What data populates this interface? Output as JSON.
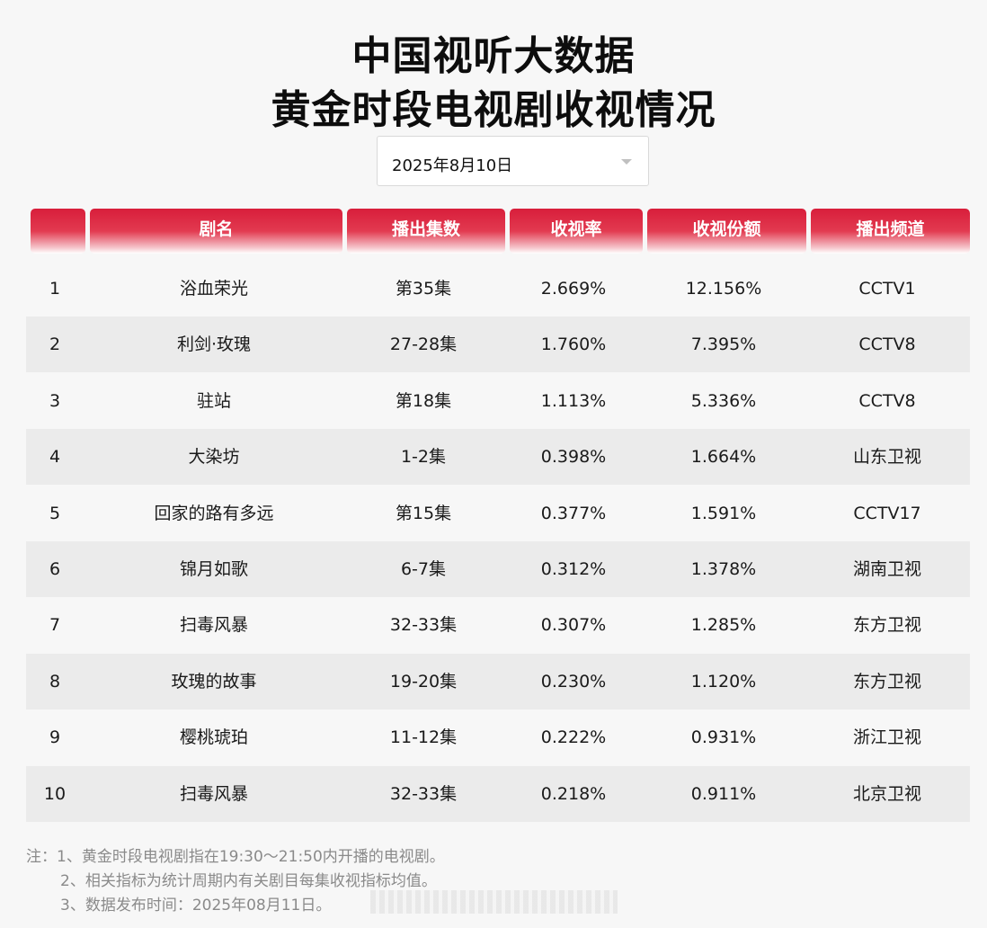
{
  "title_line1": "中国视听大数据",
  "title_line2": "黄金时段电视剧收视情况",
  "date_select": {
    "value": "2025年8月10日"
  },
  "table": {
    "headers": [
      "",
      "剧名",
      "播出集数",
      "收视率",
      "收视份额",
      "播出频道"
    ],
    "rows": [
      {
        "rank": "1",
        "name": "浴血荣光",
        "episodes": "第35集",
        "rating": "2.669%",
        "share": "12.156%",
        "channel": "CCTV1"
      },
      {
        "rank": "2",
        "name": "利剑·玫瑰",
        "episodes": "27-28集",
        "rating": "1.760%",
        "share": "7.395%",
        "channel": "CCTV8"
      },
      {
        "rank": "3",
        "name": "驻站",
        "episodes": "第18集",
        "rating": "1.113%",
        "share": "5.336%",
        "channel": "CCTV8"
      },
      {
        "rank": "4",
        "name": "大染坊",
        "episodes": "1-2集",
        "rating": "0.398%",
        "share": "1.664%",
        "channel": "山东卫视"
      },
      {
        "rank": "5",
        "name": "回家的路有多远",
        "episodes": "第15集",
        "rating": "0.377%",
        "share": "1.591%",
        "channel": "CCTV17"
      },
      {
        "rank": "6",
        "name": "锦月如歌",
        "episodes": "6-7集",
        "rating": "0.312%",
        "share": "1.378%",
        "channel": "湖南卫视"
      },
      {
        "rank": "7",
        "name": "扫毒风暴",
        "episodes": "32-33集",
        "rating": "0.307%",
        "share": "1.285%",
        "channel": "东方卫视"
      },
      {
        "rank": "8",
        "name": "玫瑰的故事",
        "episodes": "19-20集",
        "rating": "0.230%",
        "share": "1.120%",
        "channel": "东方卫视"
      },
      {
        "rank": "9",
        "name": "樱桃琥珀",
        "episodes": "11-12集",
        "rating": "0.222%",
        "share": "0.931%",
        "channel": "浙江卫视"
      },
      {
        "rank": "10",
        "name": "扫毒风暴",
        "episodes": "32-33集",
        "rating": "0.218%",
        "share": "0.911%",
        "channel": "北京卫视"
      }
    ]
  },
  "notes": [
    "注：1、黄金时段电视剧指在19:30～21:50内开播的电视剧。",
    "2、相关指标为统计周期内有关剧目每集收视指标均值。",
    "3、数据发布时间：2025年08月11日。"
  ]
}
